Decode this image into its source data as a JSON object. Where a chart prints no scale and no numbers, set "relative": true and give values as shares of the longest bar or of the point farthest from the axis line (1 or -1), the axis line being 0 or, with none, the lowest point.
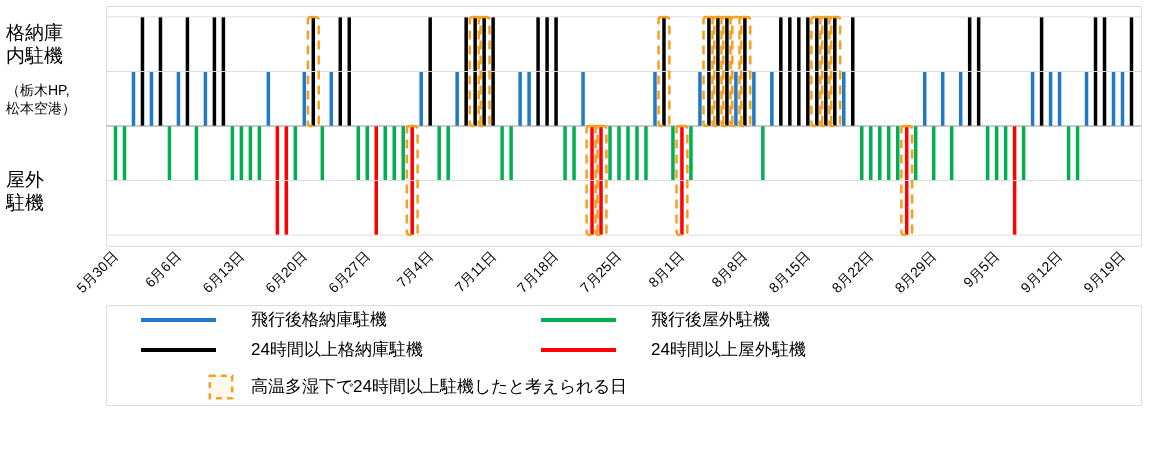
{
  "chart_data": {
    "type": "bar",
    "relative": true,
    "legend": "bottom",
    "ref_lines": [
      {
        "axis": "y",
        "value": 1,
        "color": "#dddddd"
      },
      {
        "axis": "y",
        "value": 0.5,
        "color": "#dddddd"
      },
      {
        "axis": "y",
        "value": -0.5,
        "color": "#dddddd"
      },
      {
        "axis": "y",
        "value": -1,
        "color": "#dddddd"
      }
    ],
    "categories": [
      "5月30日",
      null,
      null,
      null,
      null,
      null,
      null,
      "6月6日",
      null,
      null,
      null,
      null,
      null,
      null,
      "6月13日",
      null,
      null,
      null,
      null,
      null,
      null,
      "6月20日",
      null,
      null,
      null,
      null,
      null,
      null,
      "6月27日",
      null,
      null,
      null,
      null,
      null,
      null,
      "7月4日",
      null,
      null,
      null,
      null,
      null,
      null,
      "7月11日",
      null,
      null,
      null,
      null,
      null,
      null,
      "7月18日",
      null,
      null,
      null,
      null,
      null,
      null,
      "7月25日",
      null,
      null,
      null,
      null,
      null,
      null,
      "8月1日",
      null,
      null,
      null,
      null,
      null,
      null,
      "8月8日",
      null,
      null,
      null,
      null,
      null,
      null,
      "8月15日",
      null,
      null,
      null,
      null,
      null,
      null,
      "8月22日",
      null,
      null,
      null,
      null,
      null,
      null,
      "8月29日",
      null,
      null,
      null,
      null,
      null,
      null,
      "9月5日",
      null,
      null,
      null,
      null,
      null,
      null,
      "9月12日",
      null,
      null,
      null,
      null,
      null,
      null,
      "9月19日",
      null
    ],
    "annotations": [
      "格納庫内駐機",
      "（栃木HP,松本空港）",
      "屋外駐機"
    ],
    "series": [
      {
        "name": "飛行後格納庫駐機",
        "color": "#1f78c8",
        "values": [
          null,
          null,
          0.5,
          null,
          0.5,
          null,
          null,
          0.5,
          null,
          null,
          0.5,
          null,
          null,
          null,
          null,
          null,
          null,
          0.5,
          null,
          null,
          null,
          0.5,
          null,
          null,
          0.5,
          null,
          null,
          null,
          null,
          null,
          null,
          null,
          null,
          null,
          0.5,
          null,
          null,
          null,
          0.5,
          null,
          null,
          null,
          null,
          null,
          null,
          0.5,
          0.5,
          null,
          null,
          null,
          null,
          null,
          0.5,
          null,
          null,
          null,
          null,
          null,
          null,
          null,
          0.5,
          null,
          null,
          null,
          null,
          0.5,
          null,
          null,
          null,
          0.5,
          null,
          0.5,
          null,
          0.5,
          null,
          null,
          null,
          null,
          null,
          null,
          null,
          0.5,
          null,
          null,
          null,
          null,
          null,
          null,
          null,
          null,
          0.5,
          null,
          0.5,
          null,
          0.5,
          null,
          null,
          null,
          null,
          null,
          null,
          null,
          0.5,
          null,
          0.5,
          0.5,
          null,
          null,
          0.5,
          null,
          null,
          0.5,
          0.5,
          null
        ]
      },
      {
        "name": "24時間以上格納庫駐機",
        "color": "#000000",
        "values": [
          null,
          null,
          null,
          1,
          null,
          1,
          null,
          null,
          1,
          null,
          null,
          1,
          1,
          null,
          null,
          null,
          null,
          null,
          null,
          null,
          null,
          null,
          1,
          null,
          null,
          1,
          1,
          null,
          null,
          null,
          null,
          null,
          null,
          null,
          null,
          1,
          null,
          null,
          null,
          1,
          1,
          1,
          1,
          null,
          null,
          null,
          null,
          1,
          1,
          1,
          null,
          null,
          null,
          null,
          null,
          null,
          null,
          null,
          null,
          null,
          null,
          1,
          null,
          null,
          null,
          null,
          1,
          1,
          1,
          null,
          1,
          null,
          null,
          null,
          1,
          1,
          1,
          1,
          1,
          1,
          1,
          null,
          1,
          null,
          null,
          null,
          null,
          null,
          null,
          null,
          null,
          null,
          null,
          null,
          null,
          1,
          1,
          null,
          null,
          null,
          null,
          null,
          null,
          1,
          null,
          null,
          null,
          null,
          null,
          1,
          1,
          null,
          null,
          1
        ]
      },
      {
        "name": "飛行後屋外駐機",
        "color": "#00b050",
        "values": [
          -0.5,
          -0.5,
          null,
          null,
          null,
          null,
          -0.5,
          null,
          null,
          -0.5,
          null,
          null,
          null,
          -0.5,
          -0.5,
          -0.5,
          -0.5,
          null,
          null,
          null,
          -0.5,
          null,
          null,
          -0.5,
          null,
          null,
          null,
          -0.5,
          -0.5,
          null,
          -0.5,
          -0.5,
          -0.5,
          null,
          null,
          null,
          -0.5,
          -0.5,
          null,
          null,
          null,
          null,
          null,
          -0.5,
          -0.5,
          null,
          null,
          null,
          null,
          null,
          -0.5,
          -0.5,
          null,
          null,
          null,
          -0.5,
          -0.5,
          -0.5,
          -0.5,
          -0.5,
          null,
          null,
          -0.5,
          null,
          -0.5,
          null,
          null,
          null,
          null,
          null,
          null,
          null,
          -0.5,
          null,
          null,
          null,
          null,
          null,
          null,
          null,
          null,
          null,
          null,
          -0.5,
          -0.5,
          -0.5,
          -0.5,
          -0.5,
          null,
          -0.5,
          null,
          -0.5,
          null,
          -0.5,
          null,
          null,
          null,
          -0.5,
          -0.5,
          -0.5,
          null,
          -0.5,
          null,
          null,
          null,
          null,
          -0.5,
          -0.5,
          null,
          null,
          null,
          null,
          null,
          null
        ]
      },
      {
        "name": "24時間以上屋外駐機",
        "color": "#ff0000",
        "values": [
          null,
          null,
          null,
          null,
          null,
          null,
          null,
          null,
          null,
          null,
          null,
          null,
          null,
          null,
          null,
          null,
          null,
          null,
          -1,
          -1,
          null,
          null,
          null,
          null,
          null,
          null,
          null,
          null,
          null,
          -1,
          null,
          null,
          null,
          -1,
          null,
          null,
          null,
          null,
          null,
          null,
          null,
          null,
          null,
          null,
          null,
          null,
          null,
          null,
          null,
          null,
          null,
          null,
          null,
          -1,
          -1,
          null,
          null,
          null,
          null,
          null,
          null,
          null,
          null,
          -1,
          null,
          null,
          null,
          null,
          null,
          null,
          null,
          null,
          null,
          null,
          null,
          null,
          null,
          null,
          null,
          null,
          null,
          null,
          null,
          null,
          null,
          null,
          null,
          null,
          -1,
          null,
          null,
          null,
          null,
          null,
          null,
          null,
          null,
          null,
          null,
          null,
          -1,
          null,
          null,
          null,
          null,
          null,
          null,
          null,
          null,
          null,
          null,
          null,
          null,
          null
        ]
      },
      {
        "name": "高温多湿下で24時間以上駐機したと考えられる日",
        "color": "#f5a020",
        "line_style": "dashed",
        "values": [
          null,
          null,
          null,
          null,
          null,
          null,
          null,
          null,
          null,
          null,
          null,
          null,
          null,
          null,
          null,
          null,
          null,
          null,
          null,
          null,
          null,
          null,
          1,
          null,
          null,
          null,
          null,
          null,
          null,
          null,
          null,
          null,
          null,
          -1,
          null,
          null,
          null,
          null,
          null,
          null,
          1,
          1,
          null,
          null,
          null,
          null,
          null,
          null,
          null,
          null,
          null,
          null,
          null,
          -1,
          -1,
          null,
          null,
          null,
          null,
          null,
          null,
          1,
          null,
          -1,
          null,
          null,
          1,
          1,
          1,
          1,
          1,
          null,
          null,
          null,
          null,
          null,
          null,
          null,
          1,
          1,
          1,
          null,
          null,
          null,
          null,
          null,
          null,
          null,
          -1,
          null,
          null,
          null,
          null,
          null,
          null,
          null,
          null,
          null,
          null,
          null,
          null,
          null,
          null,
          null,
          null,
          null,
          null,
          null,
          null,
          null,
          null,
          null,
          null,
          null
        ]
      }
    ]
  }
}
